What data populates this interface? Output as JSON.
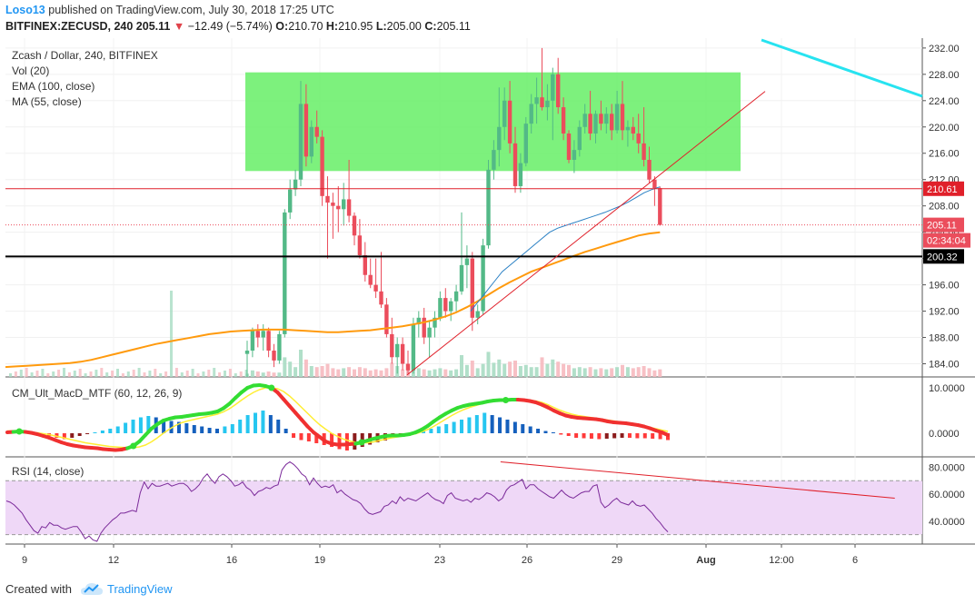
{
  "header": {
    "author": "Loso13",
    "published_text": "published on TradingView.com, July 30, 2018 17:25 UTC",
    "symbol": "BITFINEX:ZECUSD, 240",
    "last_price": "205.11",
    "change_arrow": "▼",
    "change": "−12.49 (−5.74%)",
    "open_label": "O:",
    "open": "210.70",
    "high_label": "H:",
    "high": "210.95",
    "low_label": "L:",
    "low": "205.00",
    "close_label": "C:",
    "close": "205.11"
  },
  "legend": {
    "title": "Zcash / Dollar, 240, BITFINEX",
    "vol": "Vol (20)",
    "ema": "EMA (100, close)",
    "ma": "MA (55, close)",
    "macd": "CM_Ult_MacD_MTF (60, 12, 26, 9)",
    "rsi": "RSI (14, close)"
  },
  "price_badges": {
    "resistance": "210.61",
    "last": "205.11",
    "countdown": "02:34:04",
    "support": "200.32"
  },
  "footer": {
    "created_with": "Created with",
    "brand": "TradingView"
  },
  "colors": {
    "up": "#53b987",
    "down": "#eb4d5c",
    "zone": "#66ee66",
    "trend": "#e0202a",
    "cyan": "#27e3f0",
    "ema": "#ff9a0d",
    "ma": "#2a80c4",
    "rsi": "#7b2a9a",
    "rsi_band": "#efd8f7"
  },
  "chart_data": [
    {
      "type": "candlestick",
      "title": "Zcash / Dollar, 240, BITFINEX",
      "x_ticks": [
        "9",
        "12",
        "16",
        "19",
        "23",
        "26",
        "29",
        "Aug",
        "12:00",
        "6"
      ],
      "y_ticks": [
        184,
        188,
        192,
        196,
        200,
        204,
        208,
        212,
        216,
        220,
        224,
        228,
        232
      ],
      "ylim": [
        182,
        233.5
      ],
      "ohlc": [
        [
          185.5,
          187.5,
          182.0,
          186.0
        ],
        [
          186.0,
          189.5,
          185.0,
          189.0
        ],
        [
          189.0,
          190.0,
          186.5,
          188.0
        ],
        [
          188.0,
          190.0,
          186.0,
          189.0
        ],
        [
          189.0,
          189.5,
          185.0,
          186.0
        ],
        [
          186.0,
          187.0,
          183.5,
          184.5
        ],
        [
          184.5,
          189.0,
          184.0,
          188.5
        ],
        [
          188.5,
          207.5,
          188.0,
          207.0
        ],
        [
          207.0,
          212.0,
          206.0,
          210.5
        ],
        [
          210.5,
          213.5,
          209.5,
          212.0
        ],
        [
          212.0,
          227.0,
          211.0,
          223.5
        ],
        [
          223.5,
          226.5,
          214.0,
          215.5
        ],
        [
          215.5,
          221.0,
          214.5,
          220.0
        ],
        [
          220.0,
          222.5,
          217.5,
          218.5
        ],
        [
          218.5,
          219.5,
          208.0,
          209.5
        ],
        [
          209.5,
          212.5,
          200.0,
          208.5
        ],
        [
          208.5,
          210.0,
          203.0,
          208.0
        ],
        [
          208.0,
          211.0,
          204.0,
          207.5
        ],
        [
          207.5,
          211.5,
          205.0,
          209.0
        ],
        [
          209.0,
          215.0,
          205.5,
          206.5
        ],
        [
          206.5,
          207.0,
          202.0,
          203.5
        ],
        [
          203.5,
          206.0,
          200.0,
          200.5
        ],
        [
          200.5,
          202.5,
          196.5,
          197.5
        ],
        [
          197.5,
          200.0,
          195.5,
          196.0
        ],
        [
          196.0,
          200.0,
          194.0,
          195.0
        ],
        [
          195.0,
          201.0,
          192.5,
          193.0
        ],
        [
          193.0,
          194.0,
          188.0,
          188.5
        ],
        [
          188.5,
          191.0,
          184.0,
          185.0
        ],
        [
          185.0,
          188.0,
          182.5,
          187.0
        ],
        [
          187.0,
          188.0,
          183.0,
          184.0
        ],
        [
          184.0,
          186.0,
          182.5,
          183.0
        ],
        [
          183.0,
          191.0,
          182.5,
          190.0
        ],
        [
          190.0,
          192.0,
          188.0,
          191.0
        ],
        [
          191.0,
          192.5,
          187.0,
          188.0
        ],
        [
          188.0,
          190.5,
          185.0,
          189.5
        ],
        [
          189.5,
          192.0,
          188.0,
          191.0
        ],
        [
          191.0,
          195.0,
          190.5,
          194.0
        ],
        [
          194.0,
          195.5,
          191.0,
          192.0
        ],
        [
          192.0,
          194.0,
          190.5,
          193.5
        ],
        [
          193.5,
          196.0,
          192.0,
          195.0
        ],
        [
          195.0,
          207.0,
          194.5,
          199.0
        ],
        [
          199.0,
          202.0,
          195.5,
          200.0
        ],
        [
          200.0,
          201.0,
          189.0,
          191.0
        ],
        [
          191.0,
          193.0,
          190.0,
          192.0
        ],
        [
          192.0,
          203.0,
          191.5,
          202.0
        ],
        [
          202.0,
          215.0,
          201.5,
          213.5
        ],
        [
          213.5,
          218.0,
          212.0,
          216.5
        ],
        [
          216.5,
          226.0,
          214.0,
          220.0
        ],
        [
          220.0,
          226.0,
          218.0,
          224.0
        ],
        [
          224.0,
          227.0,
          216.0,
          217.5
        ],
        [
          217.5,
          220.0,
          210.0,
          211.0
        ],
        [
          211.0,
          216.0,
          210.0,
          214.5
        ],
        [
          214.5,
          221.5,
          214.0,
          220.5
        ],
        [
          220.5,
          225.0,
          219.0,
          223.5
        ],
        [
          223.5,
          227.5,
          220.5,
          224.5
        ],
        [
          224.5,
          232.0,
          222.5,
          223.0
        ],
        [
          223.0,
          226.5,
          221.0,
          224.0
        ],
        [
          224.0,
          229.0,
          218.0,
          228.0
        ],
        [
          228.0,
          230.5,
          222.0,
          223.0
        ],
        [
          223.0,
          224.5,
          218.0,
          219.0
        ],
        [
          219.0,
          219.5,
          214.5,
          215.0
        ],
        [
          215.0,
          218.0,
          213.0,
          216.5
        ],
        [
          216.5,
          221.0,
          215.5,
          220.0
        ],
        [
          220.0,
          223.5,
          219.0,
          222.0
        ],
        [
          222.0,
          225.5,
          218.0,
          219.0
        ],
        [
          219.0,
          222.5,
          217.5,
          222.0
        ],
        [
          222.0,
          224.0,
          219.5,
          220.5
        ],
        [
          220.5,
          223.0,
          219.0,
          222.0
        ],
        [
          222.0,
          223.5,
          218.0,
          219.5
        ],
        [
          219.5,
          225.5,
          219.0,
          223.5
        ],
        [
          223.5,
          227.0,
          218.0,
          219.5
        ],
        [
          219.5,
          221.0,
          217.0,
          220.0
        ],
        [
          220.0,
          221.5,
          218.0,
          219.0
        ],
        [
          219.0,
          222.0,
          216.0,
          217.5
        ],
        [
          217.5,
          223.0,
          214.0,
          215.0
        ],
        [
          215.0,
          217.0,
          211.5,
          212.0
        ],
        [
          212.0,
          212.5,
          208.0,
          210.7
        ],
        [
          210.7,
          210.95,
          205.0,
          205.11
        ]
      ],
      "volume": [
        0.3,
        0.6,
        0.5,
        0.4,
        0.5,
        0.4,
        0.4,
        1.8,
        1.4,
        0.9,
        2.5,
        1.6,
        1.0,
        0.9,
        1.0,
        1.2,
        0.8,
        0.7,
        0.8,
        0.9,
        0.7,
        0.9,
        0.8,
        0.6,
        0.7,
        0.6,
        0.8,
        1.3,
        1.0,
        0.7,
        0.8,
        1.1,
        0.8,
        0.7,
        0.6,
        0.7,
        0.8,
        0.7,
        0.6,
        0.7,
        2.0,
        1.1,
        1.5,
        0.8,
        1.2,
        2.3,
        1.3,
        1.6,
        1.2,
        1.4,
        1.5,
        1.0,
        1.1,
        0.9,
        0.9,
        1.8,
        1.2,
        1.6,
        1.4,
        1.2,
        1.1,
        0.8,
        0.9,
        0.8,
        0.9,
        0.7,
        0.8,
        0.7,
        0.8,
        0.9,
        1.1,
        0.9,
        0.8,
        0.9,
        1.0,
        0.8,
        0.6,
        0.7
      ],
      "ema_100": [
        183.5,
        183.6,
        183.7,
        183.8,
        183.9,
        184.0,
        184.1,
        184.3,
        184.6,
        185.0,
        185.4,
        185.8,
        186.2,
        186.6,
        187.0,
        187.3,
        187.6,
        187.9,
        188.2,
        188.5,
        188.7,
        188.9,
        189.0,
        189.1,
        189.2,
        189.2,
        189.2,
        189.1,
        189.0,
        188.9,
        188.8,
        188.8,
        188.9,
        189.0,
        189.1,
        189.3,
        189.5,
        189.7,
        190.0,
        190.3,
        190.7,
        191.2,
        191.8,
        192.6,
        193.5,
        194.5,
        195.5,
        196.4,
        197.2,
        198.0,
        198.6,
        199.2,
        199.8,
        200.4,
        201.0,
        201.5,
        202.0,
        202.5,
        203.0,
        203.5,
        203.8,
        204.0
      ],
      "ma_55": [
        192.0,
        193.5,
        195.0,
        196.5,
        198.0,
        199.0,
        200.0,
        201.0,
        202.0,
        203.0,
        204.0,
        204.6,
        205.0,
        205.4,
        205.8,
        206.2,
        206.6,
        207.0,
        207.5,
        208.0,
        208.6,
        209.3,
        210.0,
        210.5,
        210.9
      ],
      "ema_start_index": 16,
      "ma_start_index": 53,
      "horizontal_lines": [
        210.61,
        205.11,
        200.32
      ],
      "zone": {
        "from_index": 10,
        "to_index": 88,
        "low": 213.3,
        "high": 228.3
      }
    },
    {
      "type": "bar-line",
      "title": "CM_Ult_MacD_MTF (60, 12, 26, 9)",
      "y_ticks": [
        0.0,
        10.0
      ],
      "ylim": [
        -5.2,
        12.2
      ],
      "histogram": [
        0.2,
        0.5,
        0.3,
        0.1,
        -0.2,
        -0.6,
        -1.0,
        -1.3,
        -1.0,
        -0.6,
        -0.2,
        0.2,
        0.6,
        1.0,
        1.5,
        2.3,
        3.0,
        3.5,
        3.8,
        3.5,
        3.0,
        2.7,
        2.5,
        2.2,
        1.8,
        1.5,
        1.2,
        1.0,
        1.5,
        2.0,
        3.0,
        4.0,
        4.5,
        5.0,
        4.0,
        3.0,
        1.0,
        -1.0,
        -1.5,
        -1.8,
        -2.2,
        -2.6,
        -3.0,
        -3.5,
        -3.8,
        -3.6,
        -3.0,
        -2.5,
        -2.0,
        -1.6,
        -1.0,
        -0.6,
        -0.2,
        0.2,
        0.6,
        1.0,
        1.5,
        2.0,
        2.5,
        3.0,
        3.5,
        4.0,
        4.5,
        4.0,
        3.5,
        3.0,
        2.5,
        2.0,
        1.5,
        1.0,
        0.5,
        0.2,
        -0.3,
        -0.6,
        -1.0,
        -1.1,
        -1.2,
        -1.3,
        -1.2,
        -1.1,
        -1.0,
        -1.0,
        -1.1,
        -1.1,
        -1.2,
        -1.3,
        -1.5
      ],
      "macd_line": [
        0.2,
        0.3,
        0.4,
        0.3,
        0.1,
        -0.2,
        -0.6,
        -1.0,
        -1.5,
        -2.0,
        -2.4,
        -2.7,
        -2.9,
        -3.1,
        -3.2,
        -3.3,
        -3.5,
        -3.6,
        -3.7,
        -3.6,
        -3.3,
        -2.8,
        -1.8,
        -0.4,
        1.0,
        2.0,
        2.8,
        3.2,
        3.5,
        3.6,
        3.8,
        4.0,
        4.2,
        4.3,
        4.5,
        4.8,
        5.5,
        6.5,
        7.8,
        9.0,
        10.0,
        10.5,
        10.6,
        10.4,
        10.0,
        9.0,
        7.5,
        6.0,
        4.5,
        3.0,
        1.5,
        0.2,
        -0.8,
        -1.8,
        -2.3,
        -2.5,
        -2.5,
        -2.4,
        -2.3,
        -2.0,
        -1.6,
        -1.2,
        -0.9,
        -0.6,
        -0.5,
        -0.5,
        -0.4,
        -0.2,
        0.2,
        0.8,
        1.6,
        2.6,
        3.5,
        4.3,
        5.0,
        5.6,
        6.0,
        6.3,
        6.5,
        6.7,
        7.0,
        7.2,
        7.3,
        7.3,
        7.4,
        7.4,
        7.3,
        7.1,
        6.8,
        6.3,
        5.7,
        5.0,
        4.4,
        3.9,
        3.6,
        3.4,
        3.3,
        3.2,
        3.1,
        2.9,
        2.6,
        2.4,
        2.3,
        2.2,
        2.0,
        1.8,
        1.5,
        1.1,
        0.6,
        0.2,
        -0.4
      ],
      "signal_line": [
        0.5,
        0.5,
        0.4,
        0.3,
        0.2,
        0.1,
        -0.1,
        -0.3,
        -0.6,
        -0.9,
        -1.2,
        -1.5,
        -1.8,
        -2.1,
        -2.3,
        -2.5,
        -2.7,
        -2.9,
        -3.0,
        -3.1,
        -3.2,
        -3.2,
        -3.0,
        -2.6,
        -1.9,
        -1.0,
        0.0,
        0.9,
        1.7,
        2.3,
        2.7,
        3.0,
        3.3,
        3.6,
        3.9,
        4.2,
        4.7,
        5.4,
        6.3,
        7.3,
        8.2,
        9.0,
        9.6,
        10.0,
        10.0,
        9.8,
        9.2,
        8.2,
        7.0,
        5.7,
        4.4,
        3.1,
        1.9,
        0.9,
        0.0,
        -0.7,
        -1.3,
        -1.7,
        -2.0,
        -2.1,
        -2.1,
        -1.9,
        -1.6,
        -1.3,
        -1.0,
        -0.8,
        -0.6,
        -0.4,
        -0.1,
        0.3,
        0.8,
        1.5,
        2.3,
        3.1,
        3.9,
        4.6,
        5.2,
        5.7,
        6.1,
        6.5,
        6.8,
        7.0,
        7.2,
        7.3,
        7.4,
        7.4,
        7.4,
        7.3,
        7.1,
        6.8,
        6.3,
        5.7,
        5.1,
        4.6,
        4.2,
        3.9,
        3.7,
        3.5,
        3.3,
        3.1,
        2.9,
        2.7,
        2.5,
        2.3,
        2.1,
        1.9,
        1.6,
        1.3,
        1.0,
        0.7,
        0.4
      ]
    },
    {
      "type": "line",
      "title": "RSI (14, close)",
      "y_ticks": [
        40.0,
        60.0,
        80.0
      ],
      "ylim": [
        23,
        87
      ],
      "band": [
        30,
        70
      ],
      "values": [
        55,
        54,
        52,
        49,
        46,
        41,
        37,
        33,
        31,
        36,
        35,
        39,
        37,
        37,
        35,
        34,
        35,
        36,
        36,
        32,
        27,
        29,
        26,
        25,
        31,
        35,
        38,
        41,
        43,
        46,
        46,
        47,
        48,
        47,
        61,
        69,
        64,
        68,
        66,
        66,
        67,
        68,
        66,
        67,
        68,
        68,
        66,
        62,
        64,
        67,
        72,
        75,
        71,
        68,
        73,
        75,
        73,
        70,
        66,
        67,
        69,
        65,
        63,
        59,
        62,
        63,
        65,
        64,
        66,
        67,
        78,
        82,
        84,
        82,
        79,
        75,
        73,
        67,
        72,
        68,
        65,
        66,
        65,
        67,
        61,
        63,
        60,
        58,
        56,
        55,
        53,
        49,
        46,
        45,
        46,
        47,
        51,
        52,
        55,
        53,
        58,
        55,
        57,
        56,
        55,
        57,
        59,
        61,
        58,
        56,
        55,
        53,
        59,
        61,
        57,
        56,
        55,
        56,
        54,
        57,
        56,
        58,
        61,
        60,
        58,
        55,
        57,
        63,
        66,
        67,
        69,
        71,
        64,
        67,
        67,
        64,
        62,
        60,
        58,
        57,
        60,
        63,
        60,
        58,
        57,
        59,
        61,
        62,
        62,
        66,
        67,
        54,
        50,
        52,
        55,
        57,
        54,
        53,
        52,
        55,
        52,
        51,
        52,
        49,
        46,
        42,
        39,
        35,
        32
      ],
      "trendline": [
        [
          0.54,
          84.0
        ],
        [
          0.97,
          57.0
        ]
      ]
    }
  ]
}
